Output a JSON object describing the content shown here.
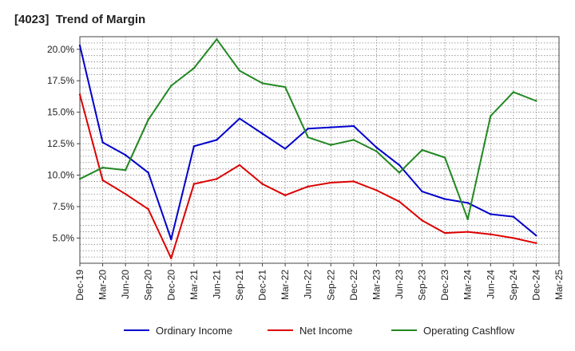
{
  "title": "[4023]  Trend of Margin",
  "chart_data": {
    "type": "line",
    "title": "[4023]  Trend of Margin",
    "xlabel": "",
    "ylabel": "",
    "categories": [
      "Dec-19",
      "Mar-20",
      "Jun-20",
      "Sep-20",
      "Dec-20",
      "Mar-21",
      "Jun-21",
      "Sep-21",
      "Dec-21",
      "Mar-22",
      "Jun-22",
      "Sep-22",
      "Dec-22",
      "Mar-23",
      "Jun-23",
      "Sep-23",
      "Dec-23",
      "Mar-24",
      "Jun-24",
      "Sep-24",
      "Dec-24",
      "Mar-25"
    ],
    "yticks": [
      "5.0%",
      "7.5%",
      "10.0%",
      "12.5%",
      "15.0%",
      "17.5%",
      "20.0%"
    ],
    "ylim": [
      3.0,
      21.0
    ],
    "grid": true,
    "legend_position": "bottom",
    "series": [
      {
        "name": "Ordinary Income",
        "color": "#0000cc",
        "values": [
          20.3,
          12.6,
          11.6,
          10.2,
          4.9,
          12.3,
          12.8,
          14.5,
          13.3,
          12.1,
          13.7,
          13.8,
          13.9,
          12.2,
          10.8,
          8.7,
          8.1,
          7.8,
          6.9,
          6.7,
          5.2,
          null
        ]
      },
      {
        "name": "Net Income",
        "color": "#dd0000",
        "values": [
          16.4,
          9.6,
          8.5,
          7.3,
          3.4,
          9.3,
          9.7,
          10.8,
          9.3,
          8.4,
          9.1,
          9.4,
          9.5,
          8.8,
          7.9,
          6.4,
          5.4,
          5.5,
          5.3,
          5.0,
          4.6,
          null
        ]
      },
      {
        "name": "Operating Cashflow",
        "color": "#228822",
        "values": [
          9.7,
          10.6,
          10.4,
          14.4,
          17.1,
          18.5,
          20.8,
          18.3,
          17.3,
          17.0,
          13.0,
          12.4,
          12.8,
          11.9,
          10.2,
          12.0,
          11.4,
          6.5,
          14.7,
          16.6,
          15.9,
          null
        ]
      }
    ]
  }
}
